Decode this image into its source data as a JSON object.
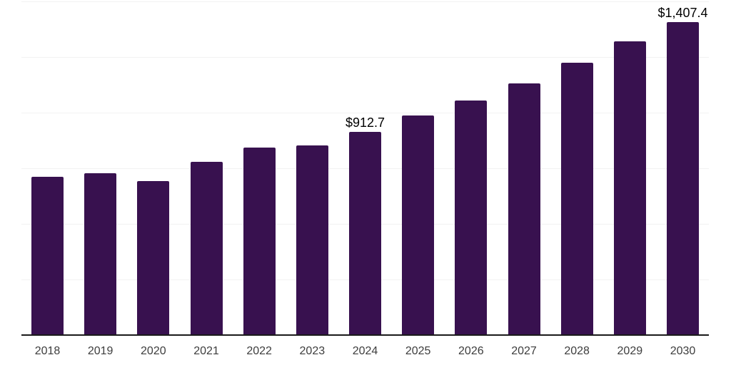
{
  "chart_data": {
    "type": "bar",
    "title": "",
    "xlabel": "",
    "ylabel": "",
    "categories": [
      "2018",
      "2019",
      "2020",
      "2021",
      "2022",
      "2023",
      "2024",
      "2025",
      "2026",
      "2027",
      "2028",
      "2029",
      "2030"
    ],
    "values": [
      710,
      727,
      692,
      778,
      842,
      852,
      912.7,
      988,
      1056,
      1133,
      1223,
      1320,
      1407.4
    ],
    "labeled_points": [
      {
        "category": "2024",
        "text": "$912.7"
      },
      {
        "category": "2030",
        "text": "$1,407.4"
      }
    ],
    "ylim": [
      0,
      1500
    ],
    "gridline_step": 250,
    "grid": true,
    "legend": "none",
    "y_tick_labels_visible": false,
    "colors": {
      "bar": "#38114F",
      "axis_line": "#1a1a1a",
      "gridline": "#f2f2f2",
      "x_label": "#3d3d3d",
      "value_label": "#000000",
      "background": "#ffffff"
    }
  }
}
